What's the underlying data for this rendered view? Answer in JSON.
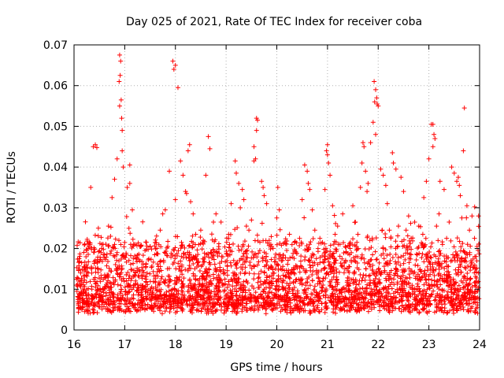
{
  "chart_data": {
    "type": "scatter",
    "title": "Day 025 of 2021, Rate Of TEC Index for receiver coba",
    "xlabel": "GPS time / hours",
    "ylabel": "ROTI / TECUs",
    "xlim": [
      16,
      24
    ],
    "ylim": [
      0,
      0.07
    ],
    "xticks": [
      "16",
      "17",
      "18",
      "19",
      "20",
      "21",
      "22",
      "23",
      "24"
    ],
    "yticks": [
      "0",
      "0.01",
      "0.02",
      "0.03",
      "0.04",
      "0.05",
      "0.06",
      "0.07"
    ],
    "grid": true,
    "marker": "+",
    "color": "#ff0000",
    "series": [
      {
        "name": "ROTI",
        "points": [
          [
            16.38,
            0.045
          ],
          [
            16.42,
            0.0455
          ],
          [
            16.45,
            0.0448
          ],
          [
            16.33,
            0.035
          ],
          [
            16.9,
            0.0675
          ],
          [
            16.92,
            0.066
          ],
          [
            16.91,
            0.0625
          ],
          [
            16.89,
            0.061
          ],
          [
            16.93,
            0.0565
          ],
          [
            16.9,
            0.055
          ],
          [
            16.94,
            0.052
          ],
          [
            16.95,
            0.049
          ],
          [
            16.95,
            0.044
          ],
          [
            16.85,
            0.042
          ],
          [
            16.97,
            0.04
          ],
          [
            17.1,
            0.0405
          ],
          [
            17.1,
            0.036
          ],
          [
            17.05,
            0.035
          ],
          [
            16.8,
            0.037
          ],
          [
            16.75,
            0.0325
          ],
          [
            17.15,
            0.0295
          ],
          [
            17.95,
            0.066
          ],
          [
            17.97,
            0.064
          ],
          [
            18.0,
            0.065
          ],
          [
            18.05,
            0.0595
          ],
          [
            18.28,
            0.0455
          ],
          [
            18.25,
            0.044
          ],
          [
            17.88,
            0.039
          ],
          [
            18.1,
            0.0415
          ],
          [
            18.15,
            0.038
          ],
          [
            18.2,
            0.034
          ],
          [
            18.22,
            0.0335
          ],
          [
            18.3,
            0.0315
          ],
          [
            18.35,
            0.0285
          ],
          [
            18.0,
            0.032
          ],
          [
            17.8,
            0.0295
          ],
          [
            17.75,
            0.0285
          ],
          [
            18.65,
            0.0475
          ],
          [
            18.68,
            0.0445
          ],
          [
            18.6,
            0.038
          ],
          [
            19.6,
            0.052
          ],
          [
            19.62,
            0.0515
          ],
          [
            19.6,
            0.049
          ],
          [
            19.55,
            0.045
          ],
          [
            19.58,
            0.042
          ],
          [
            19.55,
            0.0415
          ],
          [
            19.18,
            0.0415
          ],
          [
            19.2,
            0.0385
          ],
          [
            19.25,
            0.036
          ],
          [
            19.32,
            0.0345
          ],
          [
            19.35,
            0.032
          ],
          [
            19.28,
            0.03
          ],
          [
            19.1,
            0.031
          ],
          [
            19.7,
            0.0365
          ],
          [
            19.73,
            0.035
          ],
          [
            19.75,
            0.033
          ],
          [
            19.8,
            0.031
          ],
          [
            20.05,
            0.0295
          ],
          [
            20.0,
            0.0275
          ],
          [
            20.02,
            0.035
          ],
          [
            20.55,
            0.0405
          ],
          [
            20.6,
            0.039
          ],
          [
            20.62,
            0.036
          ],
          [
            20.65,
            0.0345
          ],
          [
            20.5,
            0.032
          ],
          [
            20.7,
            0.0295
          ],
          [
            21.0,
            0.0455
          ],
          [
            20.98,
            0.044
          ],
          [
            21.0,
            0.043
          ],
          [
            21.02,
            0.041
          ],
          [
            21.05,
            0.038
          ],
          [
            20.95,
            0.0345
          ],
          [
            21.1,
            0.0305
          ],
          [
            21.3,
            0.0285
          ],
          [
            21.5,
            0.0305
          ],
          [
            21.92,
            0.061
          ],
          [
            21.95,
            0.059
          ],
          [
            21.97,
            0.057
          ],
          [
            21.93,
            0.056
          ],
          [
            21.98,
            0.0555
          ],
          [
            22.0,
            0.055
          ],
          [
            21.9,
            0.051
          ],
          [
            21.95,
            0.048
          ],
          [
            21.85,
            0.046
          ],
          [
            21.7,
            0.046
          ],
          [
            21.72,
            0.045
          ],
          [
            21.68,
            0.041
          ],
          [
            21.75,
            0.039
          ],
          [
            21.8,
            0.036
          ],
          [
            21.78,
            0.034
          ],
          [
            21.65,
            0.035
          ],
          [
            22.05,
            0.0395
          ],
          [
            22.1,
            0.038
          ],
          [
            22.15,
            0.0355
          ],
          [
            22.28,
            0.0435
          ],
          [
            22.3,
            0.041
          ],
          [
            22.35,
            0.0395
          ],
          [
            22.45,
            0.0375
          ],
          [
            22.5,
            0.034
          ],
          [
            22.18,
            0.031
          ],
          [
            22.6,
            0.028
          ],
          [
            23.05,
            0.0505
          ],
          [
            23.08,
            0.0505
          ],
          [
            23.1,
            0.048
          ],
          [
            23.12,
            0.047
          ],
          [
            23.08,
            0.045
          ],
          [
            23.0,
            0.042
          ],
          [
            22.95,
            0.0365
          ],
          [
            22.9,
            0.0325
          ],
          [
            23.22,
            0.0365
          ],
          [
            23.3,
            0.0345
          ],
          [
            23.45,
            0.04
          ],
          [
            23.5,
            0.0385
          ],
          [
            23.55,
            0.0365
          ],
          [
            23.58,
            0.0375
          ],
          [
            23.6,
            0.0355
          ],
          [
            23.62,
            0.033
          ],
          [
            23.7,
            0.0545
          ],
          [
            23.68,
            0.044
          ],
          [
            23.75,
            0.0305
          ],
          [
            23.85,
            0.028
          ],
          [
            23.98,
            0.028
          ],
          [
            16.1,
            0.0175
          ],
          [
            16.15,
            0.0165
          ],
          [
            16.2,
            0.0145
          ],
          [
            16.25,
            0.0195
          ],
          [
            16.3,
            0.0215
          ],
          [
            16.48,
            0.025
          ],
          [
            16.55,
            0.021
          ],
          [
            16.6,
            0.0185
          ],
          [
            16.68,
            0.0255
          ],
          [
            16.72,
            0.023
          ],
          [
            16.8,
            0.021
          ],
          [
            16.85,
            0.019
          ],
          [
            17.0,
            0.0215
          ],
          [
            17.2,
            0.021
          ],
          [
            17.3,
            0.0205
          ],
          [
            17.4,
            0.0195
          ],
          [
            17.5,
            0.0205
          ],
          [
            17.6,
            0.0215
          ],
          [
            17.7,
            0.0245
          ],
          [
            17.85,
            0.0205
          ],
          [
            18.12,
            0.0215
          ],
          [
            18.4,
            0.0235
          ],
          [
            18.5,
            0.0245
          ],
          [
            18.55,
            0.022
          ],
          [
            18.75,
            0.0265
          ],
          [
            18.8,
            0.0285
          ],
          [
            18.9,
            0.0265
          ],
          [
            19.05,
            0.0235
          ],
          [
            19.4,
            0.0255
          ],
          [
            19.45,
            0.0245
          ],
          [
            19.5,
            0.027
          ],
          [
            19.85,
            0.022
          ],
          [
            19.9,
            0.0205
          ],
          [
            20.15,
            0.0215
          ],
          [
            20.25,
            0.0235
          ],
          [
            20.35,
            0.0215
          ],
          [
            20.45,
            0.0225
          ],
          [
            20.75,
            0.0245
          ],
          [
            20.85,
            0.0225
          ],
          [
            20.9,
            0.0215
          ],
          [
            21.15,
            0.0235
          ],
          [
            21.2,
            0.0255
          ],
          [
            21.35,
            0.0205
          ],
          [
            21.45,
            0.0215
          ],
          [
            21.55,
            0.0265
          ],
          [
            21.6,
            0.0235
          ],
          [
            22.08,
            0.0245
          ],
          [
            22.22,
            0.0245
          ],
          [
            22.25,
            0.0225
          ],
          [
            22.4,
            0.0255
          ],
          [
            22.55,
            0.0245
          ],
          [
            22.65,
            0.0225
          ],
          [
            22.72,
            0.0265
          ],
          [
            22.8,
            0.0255
          ],
          [
            22.88,
            0.0235
          ],
          [
            23.15,
            0.0255
          ],
          [
            23.2,
            0.0285
          ],
          [
            23.35,
            0.0225
          ],
          [
            23.4,
            0.0265
          ],
          [
            23.65,
            0.0275
          ],
          [
            23.8,
            0.0245
          ],
          [
            23.9,
            0.0225
          ],
          [
            23.95,
            0.0205
          ]
        ]
      }
    ]
  }
}
